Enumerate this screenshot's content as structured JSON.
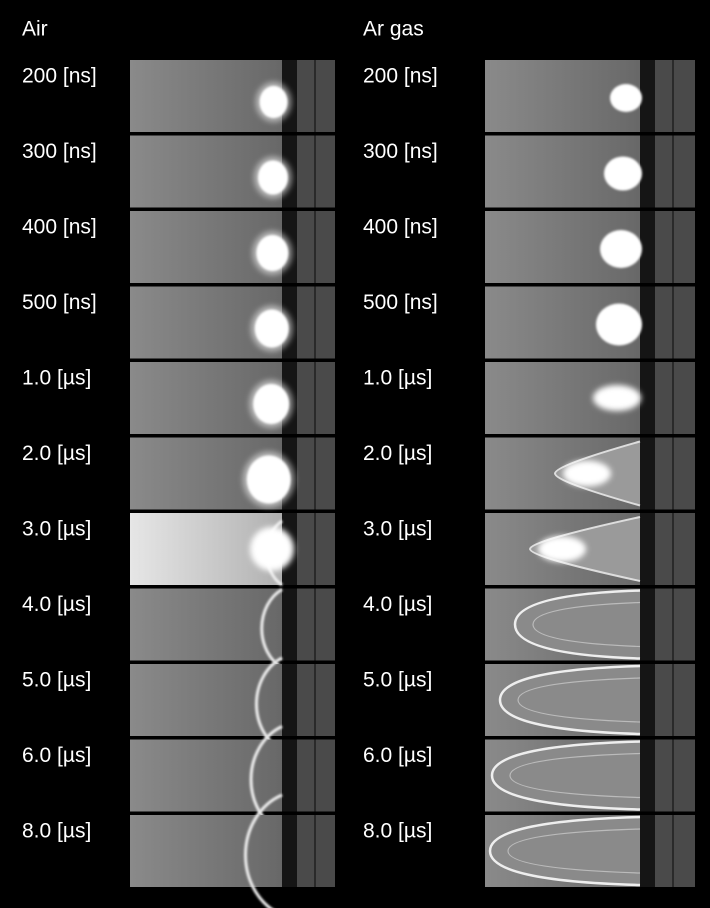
{
  "columns": [
    {
      "title": "Air",
      "labels": [
        "200 [ns]",
        "300 [ns]",
        "400 [ns]",
        "500 [ns]",
        "1.0 [µs]",
        "2.0 [µs]",
        "3.0 [µs]",
        "4.0 [µs]",
        "5.0 [µs]",
        "6.0 [µs]",
        "8.0 [µs]"
      ]
    },
    {
      "title": "Ar gas",
      "labels": [
        "200 [ns]",
        "300 [ns]",
        "400 [ns]",
        "500 [ns]",
        "1.0 [µs]",
        "2.0 [µs]",
        "3.0 [µs]",
        "4.0 [µs]",
        "5.0 [µs]",
        "6.0 [µs]",
        "8.0 [µs]"
      ]
    }
  ]
}
